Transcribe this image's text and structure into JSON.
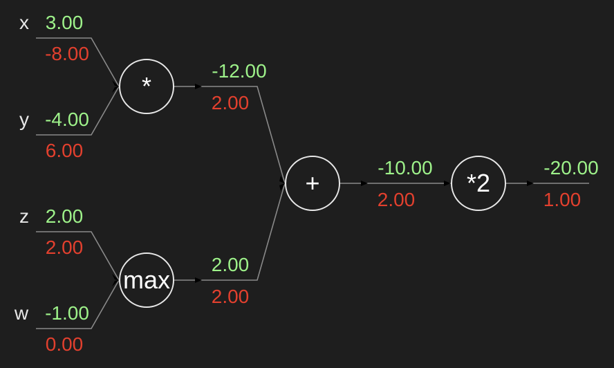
{
  "colors": {
    "background": "#1e1e1e",
    "forward_value": "#9ef28a",
    "gradient_value": "#e2402e",
    "edge": "#8a8a8a",
    "node_outline": "#e8e8e8"
  },
  "inputs": {
    "x": {
      "name": "x",
      "value": "3.00",
      "grad": "-8.00"
    },
    "y": {
      "name": "y",
      "value": "-4.00",
      "grad": "6.00"
    },
    "z": {
      "name": "z",
      "value": "2.00",
      "grad": "2.00"
    },
    "w": {
      "name": "w",
      "value": "-1.00",
      "grad": "0.00"
    }
  },
  "nodes": {
    "mul": {
      "op": "*",
      "value": "-12.00",
      "grad": "2.00"
    },
    "max": {
      "op": "max",
      "value": "2.00",
      "grad": "2.00"
    },
    "add": {
      "op": "+",
      "value": "-10.00",
      "grad": "2.00"
    },
    "scale": {
      "op": "*2",
      "value": "-20.00",
      "grad": "1.00"
    }
  }
}
